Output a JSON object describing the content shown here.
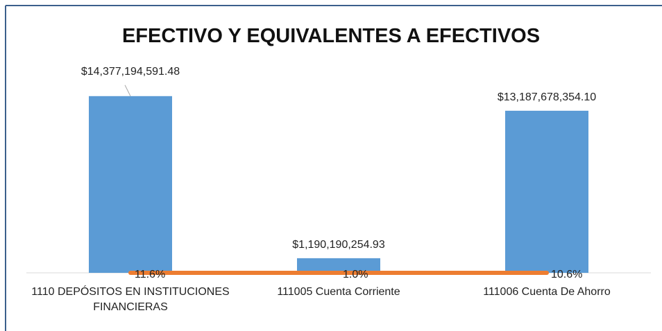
{
  "chart_data": {
    "type": "bar",
    "title": "EFECTIVO Y EQUIVALENTES A EFECTIVOS",
    "categories": [
      "1110  DEPÓSITOS EN INSTITUCIONES FINANCIERAS",
      "111005  Cuenta Corriente",
      "111006  Cuenta De Ahorro"
    ],
    "series": [
      {
        "type": "bar",
        "color": "#5b9bd5",
        "values": [
          14377194591.48,
          1190190254.93,
          13187678354.1
        ],
        "value_labels": [
          "$14,377,194,591.48",
          "$1,190,190,254.93",
          "$13,187,678,354.10"
        ]
      },
      {
        "type": "line",
        "color": "#ed7d31",
        "values": [
          11.6,
          1.0,
          10.6
        ],
        "value_labels": [
          "11.6%",
          "1.0%",
          "10.6%"
        ]
      }
    ],
    "ylim": [
      0,
      16000000000
    ]
  }
}
